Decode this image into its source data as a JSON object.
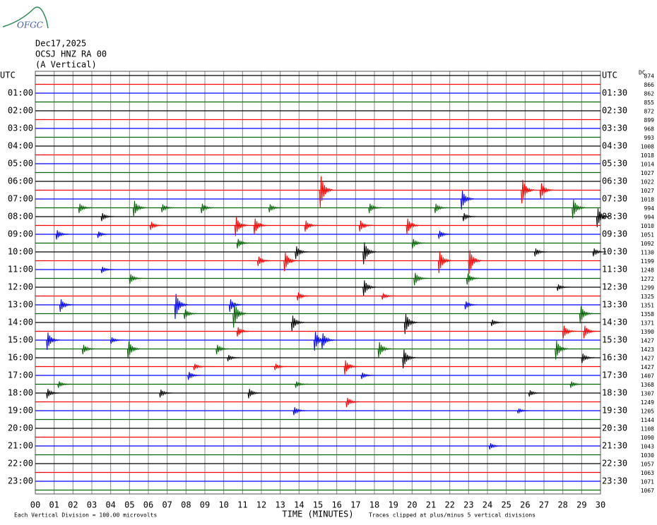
{
  "chart_data": {
    "type": "helicorder",
    "logo": "OFGC",
    "date": "Dec17,2025",
    "station": "OCSJ HNZ RA 00",
    "component": "(A Vertical)",
    "left_labels": [
      "UTC",
      "01:00",
      "02:00",
      "03:00",
      "04:00",
      "05:00",
      "06:00",
      "07:00",
      "08:00",
      "09:00",
      "10:00",
      "11:00",
      "12:00",
      "13:00",
      "14:00",
      "15:00",
      "16:00",
      "17:00",
      "18:00",
      "19:00",
      "20:00",
      "21:00",
      "22:00",
      "23:00"
    ],
    "right_labels": [
      "UTC",
      "01:30",
      "02:30",
      "03:30",
      "04:30",
      "05:30",
      "06:30",
      "07:30",
      "08:30",
      "09:30",
      "10:30",
      "11:30",
      "12:30",
      "13:30",
      "14:30",
      "15:30",
      "16:30",
      "17:30",
      "18:30",
      "19:30",
      "20:30",
      "21:30",
      "22:30",
      "23:30"
    ],
    "dc_label": "DC",
    "dc_values": [
      874,
      866,
      862,
      855,
      872,
      899,
      968,
      993,
      1008,
      1018,
      1014,
      1027,
      1022,
      1027,
      1018,
      994,
      994,
      1010,
      1051,
      1092,
      1130,
      1199,
      1248,
      1272,
      1299,
      1325,
      1351,
      1358,
      1371,
      1390,
      1427,
      1423,
      1427,
      1427,
      1407,
      1368,
      1307,
      1249,
      1205,
      1144,
      1108,
      1090,
      1043,
      1030,
      1057,
      1063,
      1071,
      1067
    ],
    "trace_colors": [
      "#000000",
      "#ff0000",
      "#0000ff",
      "#006400"
    ],
    "xlim": [
      0,
      30
    ],
    "xticks": [
      {
        "value": 0,
        "label": "00"
      },
      {
        "value": 1,
        "label": "01"
      },
      {
        "value": 2,
        "label": "02"
      },
      {
        "value": 3,
        "label": "03"
      },
      {
        "value": 4,
        "label": "04"
      },
      {
        "value": 5,
        "label": "05"
      },
      {
        "value": 6,
        "label": "06"
      },
      {
        "value": 7,
        "label": "07"
      },
      {
        "value": 8,
        "label": "08"
      },
      {
        "value": 9,
        "label": "09"
      },
      10,
      11,
      12,
      13,
      14,
      15,
      16,
      17,
      18,
      19,
      20,
      21,
      22,
      23,
      24,
      25,
      26,
      27,
      28,
      29,
      30
    ],
    "xlabel": "TIME (MINUTES)",
    "scale_note": "Each Vertical Division =  100.00 microvolts",
    "clip_note": "Traces clipped at plus/minus 5 vertical divisions",
    "events": [
      [
        13,
        15.2,
        2
      ],
      [
        13,
        25.9,
        1.5
      ],
      [
        13,
        26.9,
        1
      ],
      [
        14,
        22.7,
        1.2
      ],
      [
        15,
        2.4,
        0.6
      ],
      [
        15,
        5.3,
        1
      ],
      [
        15,
        6.8,
        0.5
      ],
      [
        15,
        8.9,
        0.6
      ],
      [
        15,
        12.5,
        0.5
      ],
      [
        15,
        17.8,
        0.6
      ],
      [
        15,
        21.3,
        0.6
      ],
      [
        15,
        28.6,
        1.2
      ],
      [
        16,
        3.6,
        0.5
      ],
      [
        16,
        22.8,
        0.5
      ],
      [
        16,
        29.9,
        1.2
      ],
      [
        17,
        6.2,
        0.5
      ],
      [
        17,
        10.7,
        1.2
      ],
      [
        17,
        11.7,
        1
      ],
      [
        17,
        14.4,
        0.7
      ],
      [
        17,
        17.3,
        0.7
      ],
      [
        17,
        19.8,
        1
      ],
      [
        18,
        1.2,
        0.6
      ],
      [
        18,
        3.4,
        0.4
      ],
      [
        18,
        21.5,
        0.5
      ],
      [
        19,
        10.8,
        0.6
      ],
      [
        19,
        20.1,
        0.6
      ],
      [
        20,
        17.5,
        1.4
      ],
      [
        20,
        13.9,
        0.8
      ],
      [
        20,
        26.6,
        0.5
      ],
      [
        20,
        29.7,
        0.5
      ],
      [
        21,
        13.3,
        1.2
      ],
      [
        21,
        21.5,
        1.4
      ],
      [
        21,
        23.1,
        1.5
      ],
      [
        21,
        11.9,
        0.6
      ],
      [
        22,
        3.6,
        0.4
      ],
      [
        23,
        5.1,
        0.6
      ],
      [
        23,
        20.2,
        0.8
      ],
      [
        23,
        23,
        0.7
      ],
      [
        24,
        17.5,
        1
      ],
      [
        24,
        27.8,
        0.4
      ],
      [
        25,
        14,
        0.5
      ],
      [
        25,
        18.5,
        0.4
      ],
      [
        26,
        1.4,
        0.8
      ],
      [
        26,
        7.5,
        1.6
      ],
      [
        26,
        10.4,
        0.8
      ],
      [
        26,
        22.9,
        0.5
      ],
      [
        27,
        10.6,
        1.6
      ],
      [
        27,
        8,
        0.6
      ],
      [
        27,
        29,
        1.1
      ],
      [
        28,
        13.7,
        1
      ],
      [
        28,
        19.7,
        1.3
      ],
      [
        28,
        24.3,
        0.4
      ],
      [
        29,
        10.8,
        0.6
      ],
      [
        29,
        28.1,
        0.8
      ],
      [
        29,
        29.2,
        0.8
      ],
      [
        30,
        0.7,
        1.1
      ],
      [
        30,
        14.9,
        1.2
      ],
      [
        30,
        15.3,
        1
      ],
      [
        30,
        4.1,
        0.4
      ],
      [
        31,
        5,
        1.1
      ],
      [
        31,
        18.3,
        1
      ],
      [
        31,
        27.7,
        1.2
      ],
      [
        31,
        2.6,
        0.6
      ],
      [
        31,
        9.7,
        0.6
      ],
      [
        32,
        19.6,
        1.2
      ],
      [
        32,
        29.1,
        0.6
      ],
      [
        32,
        10.3,
        0.4
      ],
      [
        33,
        16.5,
        0.9
      ],
      [
        33,
        12.8,
        0.4
      ],
      [
        33,
        8.5,
        0.4
      ],
      [
        34,
        8.2,
        0.5
      ],
      [
        34,
        17.4,
        0.4
      ],
      [
        35,
        1.3,
        0.4
      ],
      [
        35,
        13.9,
        0.4
      ],
      [
        35,
        28.5,
        0.4
      ],
      [
        36,
        0.7,
        0.6
      ],
      [
        36,
        6.7,
        0.5
      ],
      [
        36,
        11.4,
        0.6
      ],
      [
        36,
        26.3,
        0.4
      ],
      [
        37,
        16.6,
        0.6
      ],
      [
        38,
        13.8,
        0.5
      ],
      [
        38,
        25.7,
        0.3
      ],
      [
        42,
        24.2,
        0.4
      ]
    ]
  }
}
